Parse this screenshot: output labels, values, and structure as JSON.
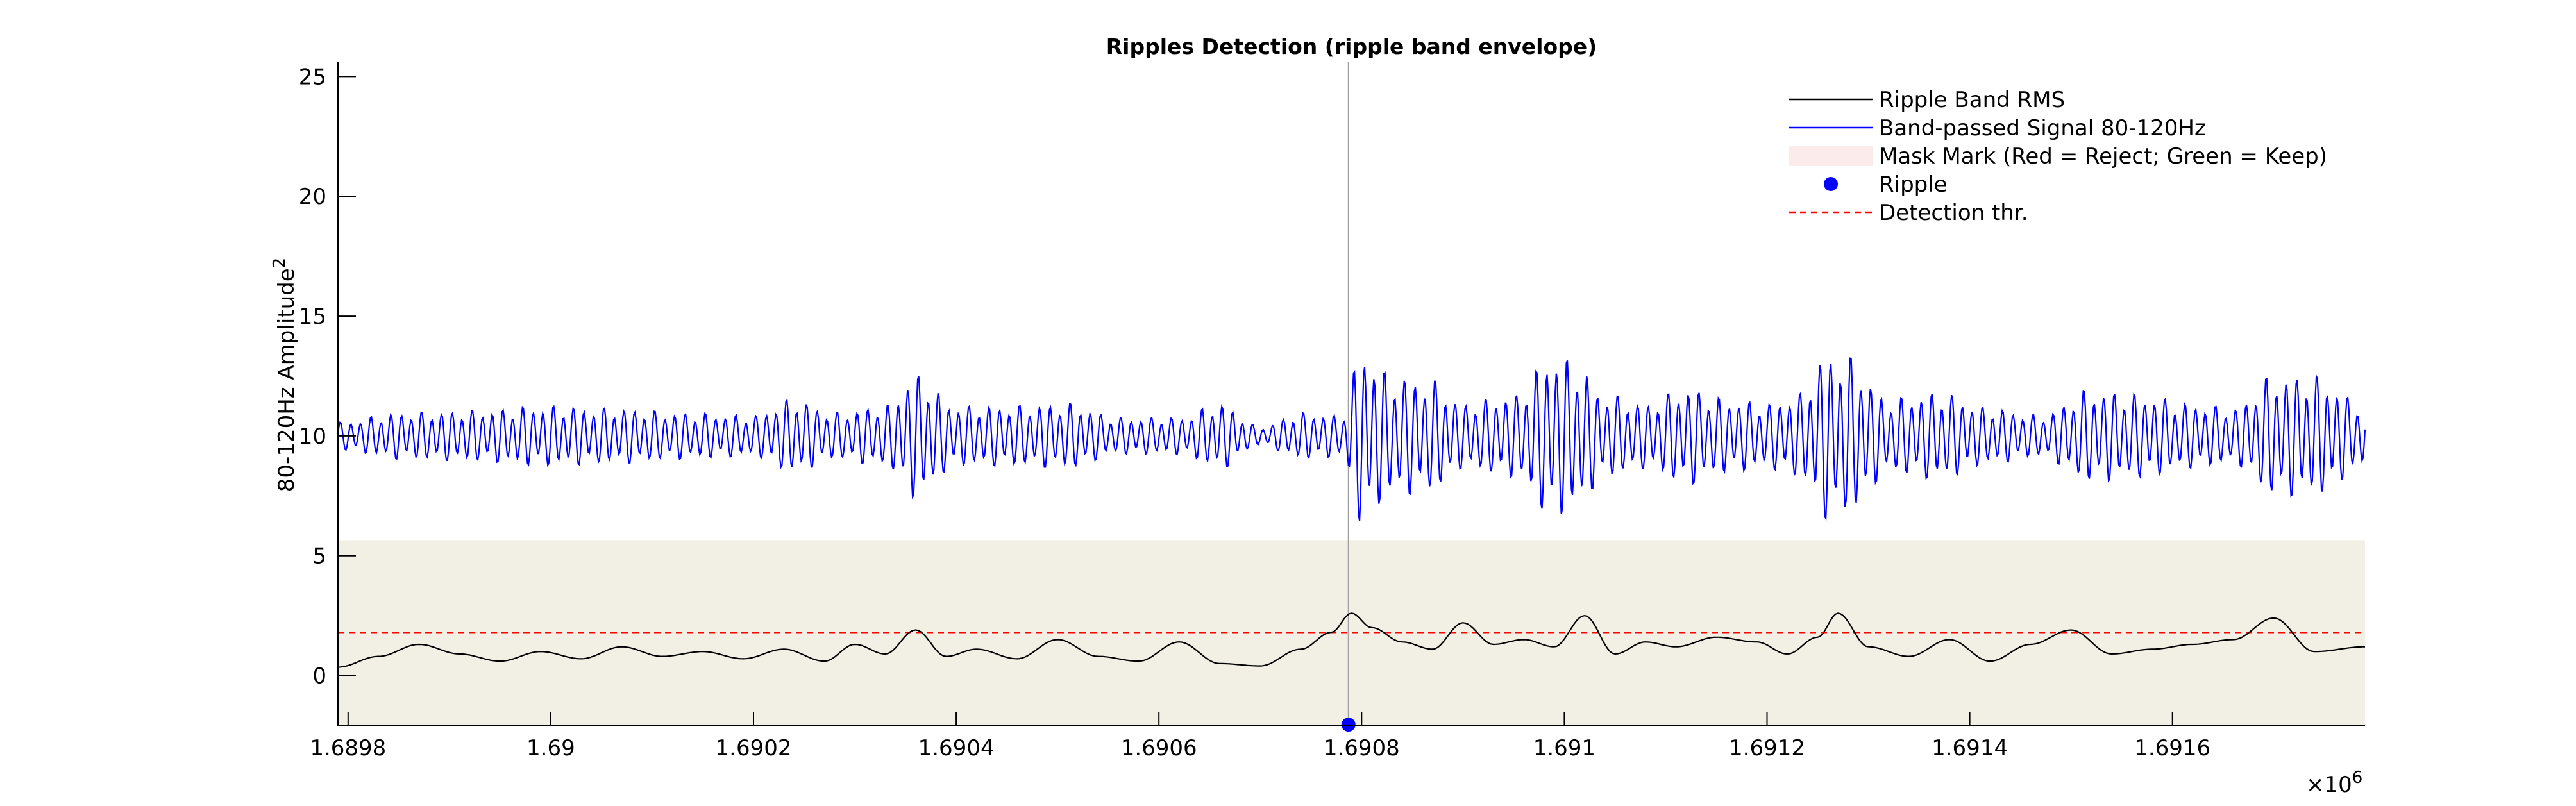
{
  "chart_data": {
    "type": "line",
    "title": "Ripples Detection  (ripple band envelope)",
    "ylabel": "80-120Hz Amplitude",
    "ylabel_superscript": "2",
    "xlabel": "",
    "x_exponent_base": "×10",
    "x_exponent_power": "6",
    "xlim": [
      1689790,
      1691790
    ],
    "ylim": [
      -2.1,
      25.6
    ],
    "x_ticks": [
      1.6898,
      1.69,
      1.6902,
      1.6904,
      1.6906,
      1.6908,
      1.691,
      1.6912,
      1.6914,
      1.6916
    ],
    "x_tick_labels": [
      "1.6898",
      "1.69",
      "1.6902",
      "1.6904",
      "1.6906",
      "1.6908",
      "1.691",
      "1.6912",
      "1.6914",
      "1.6916"
    ],
    "y_ticks": [
      0,
      5,
      10,
      15,
      20,
      25
    ],
    "y_tick_labels": [
      "0",
      "5",
      "10",
      "15",
      "20",
      "25"
    ],
    "grid": false,
    "legend_position": "top-right",
    "mask_region": {
      "x_start": 1689790,
      "x_end": 1691790,
      "y_bottom": -2.1,
      "y_top": 5.65
    },
    "ripple_marker_x": 1690787,
    "series": [
      {
        "name": "Ripple Band RMS",
        "color": "#000000",
        "style": "solid",
        "x": [
          1689790,
          1689830,
          1689870,
          1689910,
          1689950,
          1689990,
          1690030,
          1690070,
          1690110,
          1690150,
          1690190,
          1690230,
          1690270,
          1690300,
          1690330,
          1690360,
          1690390,
          1690420,
          1690460,
          1690500,
          1690540,
          1690580,
          1690620,
          1690660,
          1690700,
          1690740,
          1690770,
          1690790,
          1690810,
          1690840,
          1690870,
          1690900,
          1690930,
          1690960,
          1690990,
          1691020,
          1691050,
          1691080,
          1691110,
          1691150,
          1691190,
          1691220,
          1691250,
          1691270,
          1691300,
          1691340,
          1691380,
          1691420,
          1691460,
          1691500,
          1691540,
          1691580,
          1691620,
          1691660,
          1691700,
          1691740,
          1691790
        ],
        "values": [
          0.35,
          0.8,
          1.3,
          0.9,
          0.6,
          1.0,
          0.7,
          1.2,
          0.8,
          1.0,
          0.7,
          1.1,
          0.6,
          1.3,
          0.9,
          1.9,
          0.8,
          1.1,
          0.7,
          1.5,
          0.8,
          0.6,
          1.4,
          0.5,
          0.4,
          1.1,
          1.8,
          2.6,
          2.0,
          1.4,
          1.1,
          2.2,
          1.3,
          1.5,
          1.2,
          2.5,
          0.9,
          1.4,
          1.2,
          1.6,
          1.4,
          0.9,
          1.6,
          2.6,
          1.2,
          0.8,
          1.5,
          0.6,
          1.3,
          1.9,
          0.9,
          1.1,
          1.3,
          1.5,
          2.4,
          1.0,
          1.2
        ]
      },
      {
        "name": "Band-passed Signal 80-120Hz",
        "color": "#0000ff",
        "style": "solid",
        "center": 10,
        "x": [
          1689790,
          1689850,
          1689930,
          1689990,
          1690060,
          1690130,
          1690200,
          1690240,
          1690280,
          1690330,
          1690360,
          1690400,
          1690460,
          1690510,
          1690560,
          1690620,
          1690660,
          1690700,
          1690740,
          1690780,
          1690800,
          1690830,
          1690870,
          1690900,
          1690950,
          1690990,
          1691010,
          1691040,
          1691080,
          1691120,
          1691160,
          1691200,
          1691230,
          1691260,
          1691280,
          1691320,
          1691370,
          1691420,
          1691470,
          1691520,
          1691570,
          1691620,
          1691660,
          1691700,
          1691740,
          1691790
        ],
        "amplitude": [
          0.6,
          1.0,
          1.1,
          1.3,
          1.2,
          1.0,
          0.9,
          1.6,
          1.0,
          1.3,
          2.7,
          1.3,
          1.3,
          1.4,
          0.8,
          0.8,
          1.4,
          0.4,
          1.0,
          0.9,
          3.8,
          2.6,
          2.4,
          1.4,
          1.8,
          3.6,
          3.2,
          1.8,
          1.4,
          2.1,
          1.6,
          1.4,
          1.8,
          3.6,
          3.4,
          1.6,
          1.9,
          1.2,
          0.9,
          2.0,
          1.8,
          1.4,
          1.2,
          2.6,
          2.6,
          1.4
        ],
        "oscillation_frequency_hz": 100,
        "sampling_rate_hz": 1000,
        "points": 2000
      },
      {
        "name": "Mask Mark (Red = Reject; Green = Keep)",
        "color": "#f2f0e4",
        "legend_swatch_color": "#fcebeb",
        "style": "patch"
      },
      {
        "name": "Ripple",
        "color": "#0000ff",
        "style": "marker",
        "x": [
          1690787
        ],
        "values": [
          -2.05
        ]
      },
      {
        "name": "Detection thr.",
        "color": "#ff0000",
        "style": "dashed",
        "values": [
          1.8
        ]
      }
    ]
  }
}
